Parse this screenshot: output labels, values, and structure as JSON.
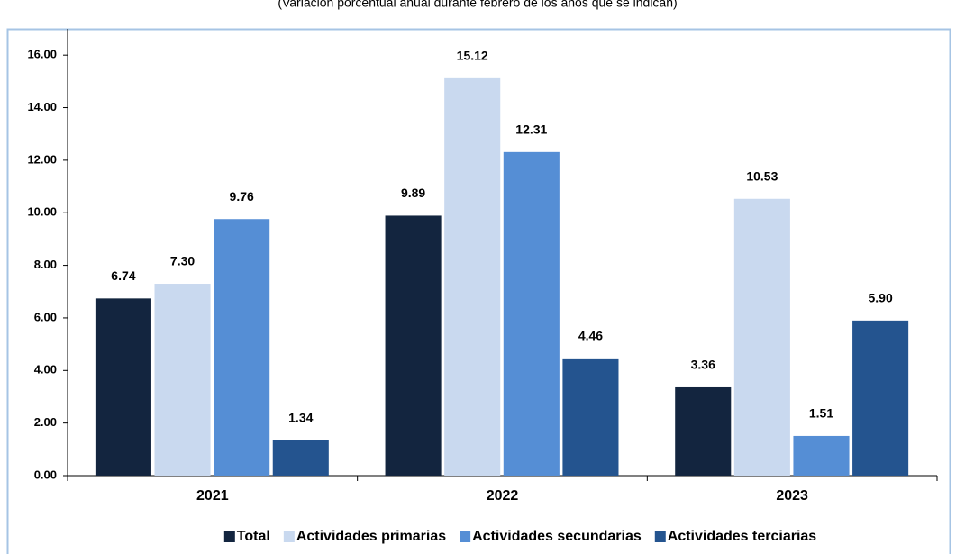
{
  "chart_data": {
    "type": "bar",
    "subtitle": "(Variación porcentual anual durante febrero de los años que se indican)",
    "categories": [
      "2021",
      "2022",
      "2023"
    ],
    "series": [
      {
        "name": "Total",
        "color": "#13253f",
        "values": [
          6.74,
          9.89,
          3.36
        ],
        "value_labels": [
          "6.74",
          "9.89",
          "3.36"
        ]
      },
      {
        "name": "Actividades primarias",
        "color": "#c9d9ef",
        "values": [
          7.3,
          15.12,
          10.53
        ],
        "value_labels": [
          "7.30",
          "15.12",
          "10.53"
        ]
      },
      {
        "name": "Actividades secundarias",
        "color": "#558ed5",
        "values": [
          9.76,
          12.31,
          1.51
        ],
        "value_labels": [
          "9.76",
          "12.31",
          "1.51"
        ]
      },
      {
        "name": "Actividades terciarias",
        "color": "#24548f",
        "values": [
          1.34,
          4.46,
          5.9
        ],
        "value_labels": [
          "1.34",
          "4.46",
          "5.90"
        ]
      }
    ],
    "ylim": [
      0,
      17
    ],
    "yticks": [
      {
        "value": 0,
        "label": "0.00"
      },
      {
        "value": 2,
        "label": "2.00"
      },
      {
        "value": 4,
        "label": "4.00"
      },
      {
        "value": 6,
        "label": "6.00"
      },
      {
        "value": 8,
        "label": "8.00"
      },
      {
        "value": 10,
        "label": "10.00"
      },
      {
        "value": 12,
        "label": "12.00"
      },
      {
        "value": 14,
        "label": "14.00"
      },
      {
        "value": 16,
        "label": "16.00"
      }
    ],
    "legend": "bottom"
  }
}
